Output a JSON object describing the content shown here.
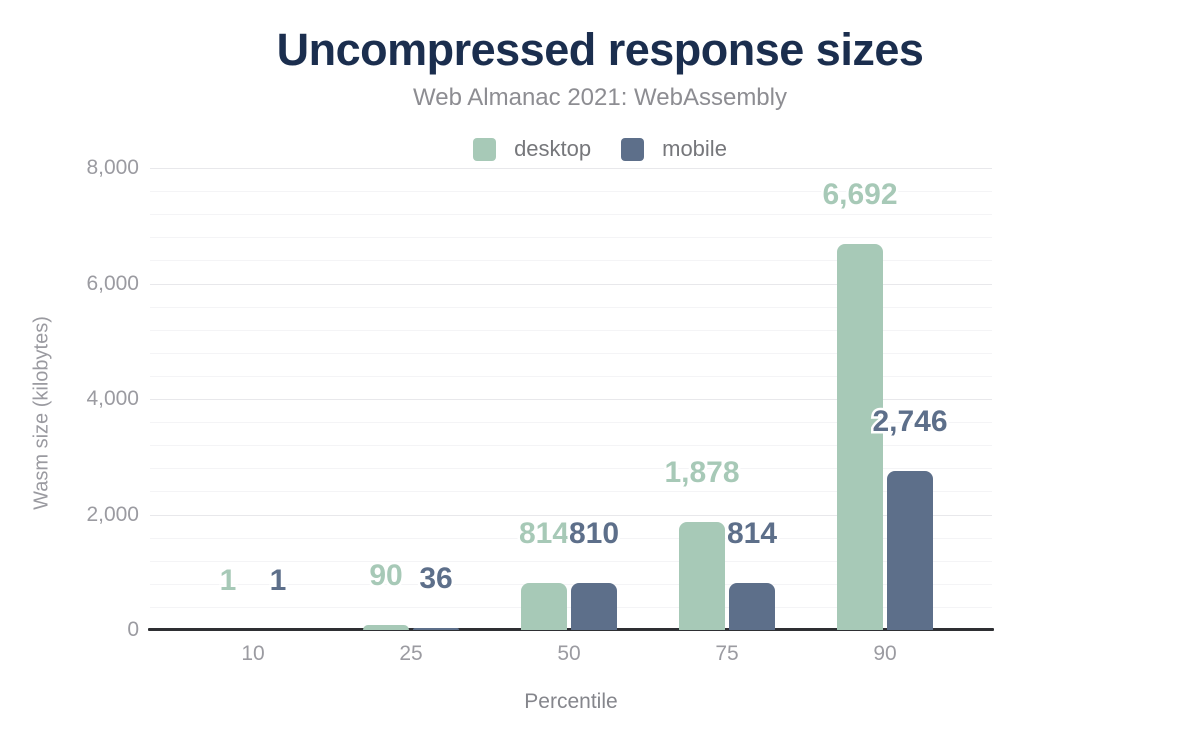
{
  "header": {
    "title": "Uncompressed response sizes",
    "subtitle": "Web Almanac 2021: WebAssembly"
  },
  "legend": {
    "items": [
      {
        "label": "desktop",
        "color": "#a7c9b7"
      },
      {
        "label": "mobile",
        "color": "#5d6f8a"
      }
    ]
  },
  "chart_data": {
    "type": "bar",
    "title": "Uncompressed response sizes",
    "subtitle": "Web Almanac 2021: WebAssembly",
    "categories": [
      "10",
      "25",
      "50",
      "75",
      "90"
    ],
    "series": [
      {
        "name": "desktop",
        "color": "#a7c9b7",
        "values": [
          1,
          90,
          814,
          1878,
          6692
        ],
        "value_labels": [
          "1",
          "90",
          "814",
          "1,878",
          "6,692"
        ]
      },
      {
        "name": "mobile",
        "color": "#5d6f8a",
        "values": [
          1,
          36,
          810,
          814,
          2746
        ],
        "value_labels": [
          "1",
          "36",
          "810",
          "814",
          "2,746"
        ]
      }
    ],
    "xlabel": "Percentile",
    "ylabel": "Wasm size (kilobytes)",
    "ylim": [
      0,
      8000
    ],
    "ytick_values": [
      0,
      2000,
      4000,
      6000,
      8000
    ],
    "ytick_labels": [
      "0",
      "2,000",
      "4,000",
      "6,000",
      "8,000"
    ],
    "minor_grid_step": 400,
    "grid": "horizontal",
    "legend_position": "top"
  },
  "colors": {
    "background": "#ffffff",
    "title": "#1b2e4e",
    "subtitle": "#8d8d92",
    "desktop_series": "#a7c9b7",
    "mobile_series": "#5d6f8a",
    "tick_text": "#9b9ba1",
    "axis_line": "#2e2f33",
    "major_gridline": "#e8e8eb",
    "minor_gridline": "#f4f4f6"
  }
}
